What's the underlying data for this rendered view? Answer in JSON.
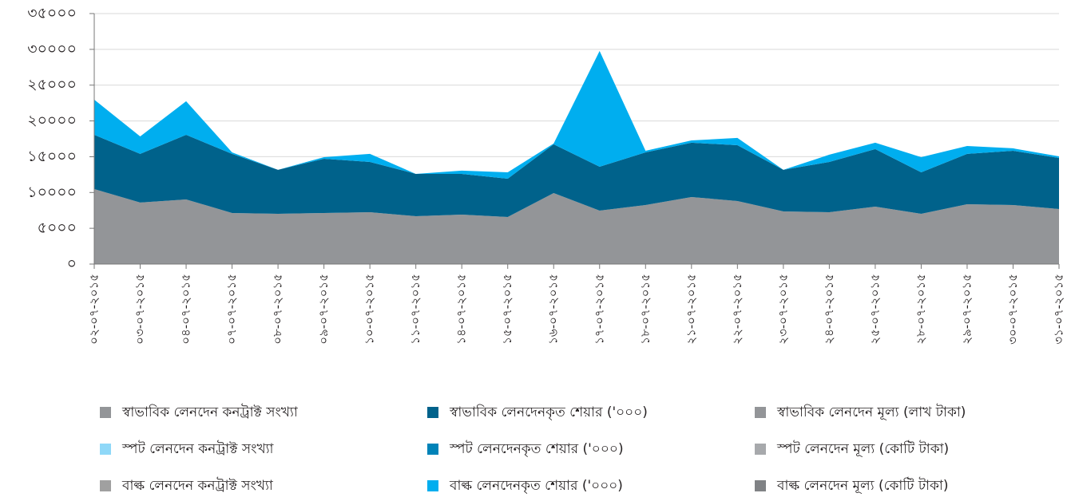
{
  "chart_data": {
    "type": "stacked-area",
    "categories": [
      "০২-০৭-২০১৫",
      "০৩-০৭-২০১৫",
      "০৪-০৭-২০১৫",
      "০৭-০৭-২০১৫",
      "০৮-০৭-২০১৫",
      "০৯-০৭-২০১৫",
      "১০-০৭-২০১৫",
      "১১-০৭-২০১৫",
      "১৪-০৭-২০১৫",
      "১৫-০৭-২০১৫",
      "১৬-০৭-২০১৫",
      "১৭-০৭-২০১৫",
      "১৮-০৭-২০১৫",
      "২১-০৭-২০১৫",
      "২২-০৭-২০১৫",
      "২৩-০৭-২০১৫",
      "২৪-০৭-২০১৫",
      "২৫-০৭-২০১৫",
      "২৮-০৭-২০১৫",
      "২৯-০৭-২০১৫",
      "৩০-০৭-২০১৫",
      "৩১-০৭-২০১৫"
    ],
    "series": [
      {
        "name": "স্বাভাবিক লেনদেন কনট্রাক্ট সংখ্যা",
        "color": "#939598",
        "values": [
          10480,
          8590,
          9030,
          7140,
          7020,
          7140,
          7250,
          6690,
          6910,
          6580,
          9920,
          7470,
          8250,
          9370,
          8810,
          7360,
          7250,
          8030,
          7020,
          8360,
          8250,
          7690
        ]
      },
      {
        "name": "স্বাভাবিক লেনদেনকৃত শেয়ার ('০০০)",
        "color": "#00628b",
        "values": [
          7580,
          6800,
          9030,
          8250,
          6140,
          7580,
          7020,
          5910,
          5690,
          5350,
          6810,
          6130,
          7360,
          7580,
          7800,
          5800,
          7020,
          8030,
          5800,
          7030,
          7580,
          7140
        ]
      },
      {
        "name": "স্বাভাবিক লেনদেন মূল্য (লাখ টাকা)",
        "color": "#939598",
        "values": [
          0,
          0,
          0,
          0,
          0,
          0,
          0,
          0,
          0,
          0,
          0,
          0,
          0,
          0,
          0,
          0,
          0,
          0,
          0,
          0,
          0,
          0
        ]
      },
      {
        "name": "স্পট লেনদেন কনট্রাক্ট সংখ্যা",
        "color": "#8fd8f8",
        "values": [
          0,
          0,
          0,
          0,
          0,
          0,
          0,
          0,
          0,
          0,
          0,
          0,
          0,
          0,
          0,
          0,
          0,
          0,
          0,
          0,
          0,
          0
        ]
      },
      {
        "name": "স্পট লেনদেনকৃত শেয়ার ('০০০)",
        "color": "#0083b8",
        "values": [
          0,
          0,
          0,
          0,
          0,
          0,
          0,
          0,
          0,
          0,
          0,
          0,
          0,
          0,
          0,
          0,
          0,
          0,
          0,
          0,
          0,
          0
        ]
      },
      {
        "name": "স্পট লেনদেন মূল্য (কোটি টাকা)",
        "color": "#a7a9ac",
        "values": [
          0,
          0,
          0,
          0,
          0,
          0,
          0,
          0,
          0,
          0,
          0,
          0,
          0,
          0,
          0,
          0,
          0,
          0,
          0,
          0,
          0,
          0
        ]
      },
      {
        "name": "বাল্ক লেনদেন কনট্রাক্ট সংখ্যা",
        "color": "#a0a0a0",
        "values": [
          0,
          0,
          0,
          0,
          0,
          0,
          0,
          0,
          0,
          0,
          0,
          0,
          0,
          0,
          0,
          0,
          0,
          0,
          0,
          0,
          0,
          0
        ]
      },
      {
        "name": "বাল্ক লেনদেনকৃত শেয়ার ('০০০)",
        "color": "#00aeef",
        "values": [
          4910,
          2450,
          4690,
          220,
          0,
          220,
          1120,
          0,
          450,
          890,
          110,
          16170,
          220,
          330,
          1010,
          0,
          1010,
          890,
          2120,
          1110,
          340,
          220
        ]
      },
      {
        "name": "বাল্ক লেনদেন মূল্য (কোটি টাকা)",
        "color": "#808285",
        "values": [
          0,
          0,
          0,
          0,
          0,
          0,
          0,
          0,
          0,
          0,
          0,
          0,
          0,
          0,
          0,
          0,
          0,
          0,
          0,
          0,
          0,
          0
        ]
      }
    ],
    "ylim": [
      0,
      35000
    ],
    "yticks": [
      {
        "value": 0,
        "label": "০"
      },
      {
        "value": 5000,
        "label": "৫০০০"
      },
      {
        "value": 10000,
        "label": "১০০০০"
      },
      {
        "value": 15000,
        "label": "১৫০০০"
      },
      {
        "value": 20000,
        "label": "২০০০০"
      },
      {
        "value": 25000,
        "label": "২৫০০০"
      },
      {
        "value": 30000,
        "label": "৩০০০০"
      },
      {
        "value": 35000,
        "label": "৩৫০০০"
      }
    ],
    "grid": true
  }
}
